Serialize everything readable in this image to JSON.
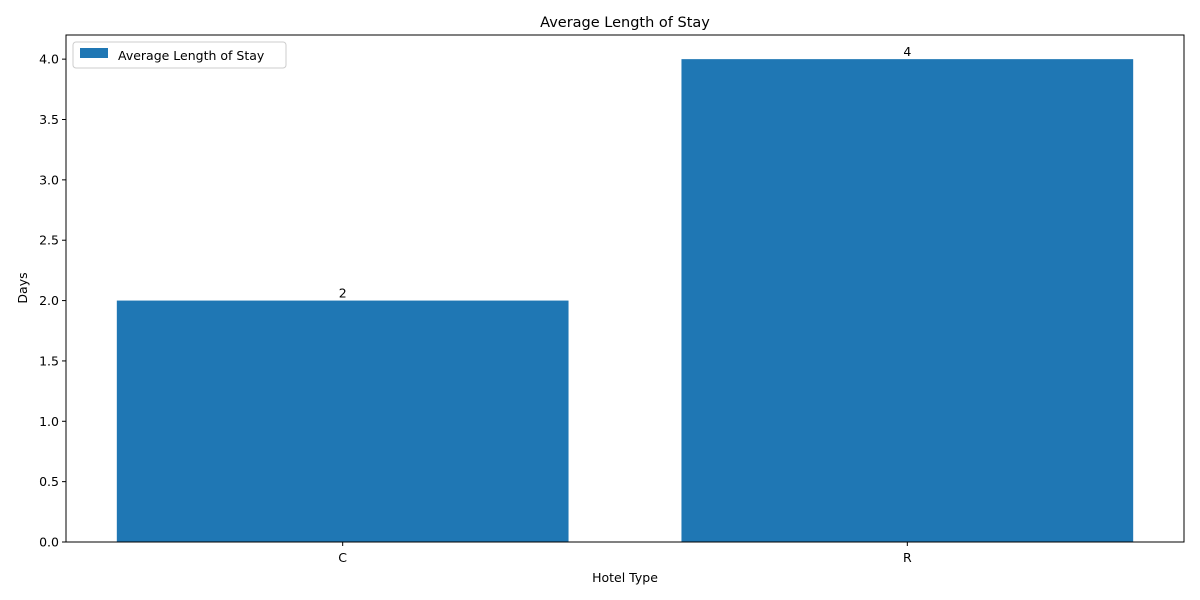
{
  "chart_data": {
    "type": "bar",
    "title": "Average Length of Stay",
    "xlabel": "Hotel Type",
    "ylabel": "Days",
    "categories": [
      "C",
      "R"
    ],
    "series": [
      {
        "name": "Average Length of Stay",
        "values": [
          2,
          4
        ],
        "data_labels": [
          "2",
          "4"
        ]
      }
    ],
    "ylim": [
      0,
      4.2
    ],
    "yticks": [
      0.0,
      0.5,
      1.0,
      1.5,
      2.0,
      2.5,
      3.0,
      3.5,
      4.0
    ],
    "ytick_labels": [
      "0.0",
      "0.5",
      "1.0",
      "1.5",
      "2.0",
      "2.5",
      "3.0",
      "3.5",
      "4.0"
    ],
    "grid": false,
    "legend_position": "top-left",
    "bar_color": "#1f77b4"
  }
}
